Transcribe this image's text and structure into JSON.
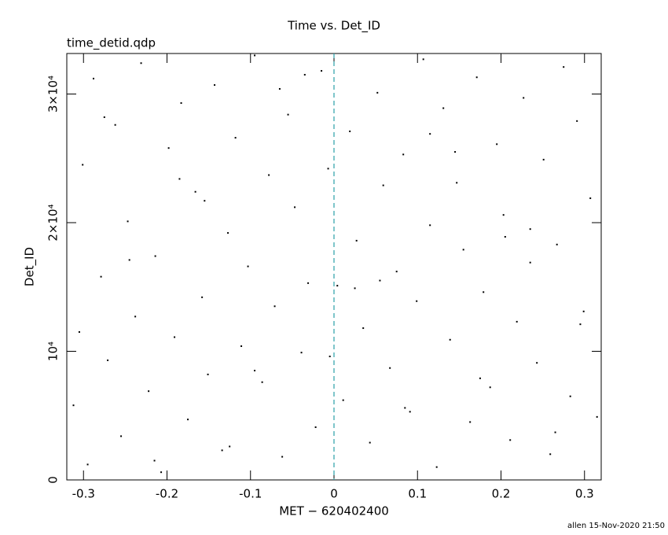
{
  "chart_data": {
    "type": "scatter",
    "title": "Time vs. Det_ID",
    "subtitle": "time_detid.qdp",
    "xlabel": "MET − 620402400",
    "ylabel": "Det_ID",
    "footer": "allen 15-Nov-2020 21:50",
    "color": "#000000",
    "xlim": [
      -0.32,
      0.32
    ],
    "ylim": [
      0,
      33150
    ],
    "xticks": [
      -0.3,
      -0.2,
      -0.1,
      0,
      0.1,
      0.2,
      0.3
    ],
    "yticks": [
      0,
      {
        "value": 10000,
        "label": "10⁴"
      },
      {
        "value": 20000,
        "label": "2×10⁴"
      },
      {
        "value": 30000,
        "label": "3×10⁴"
      }
    ],
    "grid": false,
    "vline": {
      "x": 0,
      "color": "#2a9fa8"
    },
    "x": [
      -0.312,
      -0.301,
      -0.295,
      -0.288,
      -0.279,
      -0.271,
      -0.262,
      -0.255,
      -0.247,
      -0.238,
      -0.231,
      -0.222,
      -0.214,
      -0.207,
      -0.198,
      -0.191,
      -0.183,
      -0.175,
      -0.166,
      -0.158,
      -0.151,
      -0.143,
      -0.134,
      -0.127,
      -0.118,
      -0.111,
      -0.103,
      -0.095,
      -0.086,
      -0.078,
      -0.071,
      -0.062,
      -0.055,
      -0.047,
      -0.039,
      -0.031,
      -0.022,
      -0.015,
      -0.007,
      0.004,
      0.011,
      0.019,
      0.027,
      0.035,
      0.043,
      0.052,
      0.059,
      0.067,
      0.075,
      0.083,
      0.091,
      0.099,
      0.107,
      0.115,
      0.123,
      0.131,
      0.139,
      0.147,
      0.155,
      0.163,
      0.171,
      0.179,
      0.187,
      0.195,
      0.203,
      0.211,
      0.219,
      0.227,
      0.235,
      0.243,
      0.251,
      0.259,
      0.267,
      0.275,
      0.283,
      0.291,
      0.299,
      0.307,
      0.315,
      -0.305,
      -0.245,
      -0.185,
      -0.125,
      -0.065,
      -0.005,
      0.055,
      0.115,
      0.175,
      0.235,
      0.295,
      -0.275,
      -0.215,
      -0.155,
      -0.095,
      -0.035,
      0.025,
      0.085,
      0.145,
      0.205,
      0.265
    ],
    "y": [
      5800,
      24500,
      1200,
      31200,
      15800,
      9300,
      27600,
      3400,
      20100,
      12700,
      32400,
      6900,
      17400,
      600,
      25800,
      11100,
      29300,
      4700,
      22400,
      14200,
      8200,
      30700,
      2300,
      19200,
      26600,
      10400,
      16600,
      33000,
      7600,
      23700,
      13500,
      1800,
      28400,
      21200,
      9900,
      15300,
      4100,
      31800,
      24200,
      15100,
      6200,
      27100,
      18600,
      11800,
      2900,
      30100,
      22900,
      8700,
      16200,
      25300,
      5300,
      13900,
      32700,
      19800,
      1000,
      28900,
      10900,
      23100,
      17900,
      4500,
      31300,
      14600,
      7200,
      26100,
      20600,
      3100,
      12300,
      29700,
      16900,
      9100,
      24900,
      2000,
      18300,
      32100,
      6500,
      27900,
      13100,
      21900,
      4900,
      11500,
      17100,
      23400,
      2600,
      30400,
      9600,
      15500,
      26900,
      7900,
      19500,
      12100,
      28200,
      1500,
      21700,
      8500,
      31500,
      14900,
      5600,
      25500,
      18900,
      3700
    ]
  }
}
